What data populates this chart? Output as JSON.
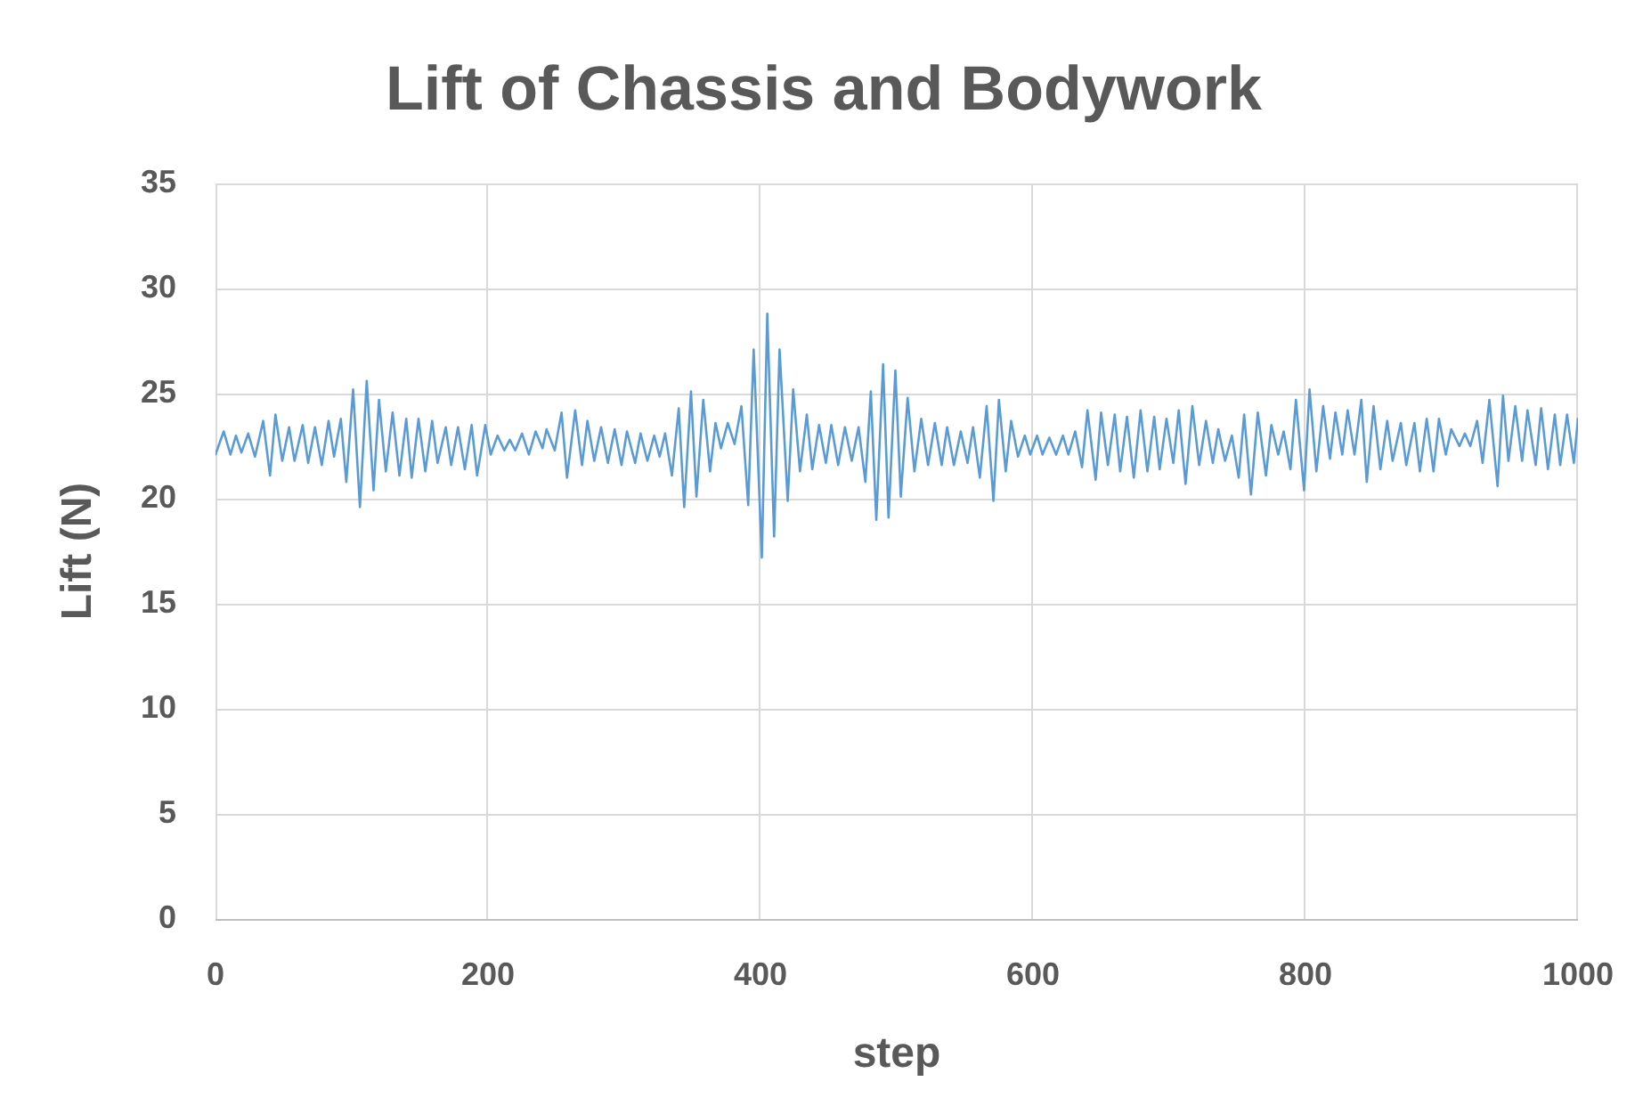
{
  "chart_data": {
    "type": "line",
    "title": "Lift of Chassis and Bodywork",
    "xlabel": "step",
    "ylabel": "Lift (N)",
    "x": [
      0,
      6,
      11,
      15,
      19,
      24,
      29,
      35,
      40,
      44,
      49,
      54,
      58,
      64,
      68,
      73,
      78,
      83,
      87,
      92,
      96,
      101,
      106,
      111,
      116,
      120,
      125,
      130,
      135,
      140,
      144,
      149,
      154,
      159,
      163,
      169,
      173,
      178,
      183,
      188,
      192,
      198,
      202,
      207,
      212,
      216,
      220,
      225,
      230,
      235,
      240,
      243,
      249,
      254,
      258,
      264,
      269,
      273,
      278,
      283,
      288,
      293,
      298,
      302,
      308,
      312,
      317,
      322,
      326,
      330,
      335,
      340,
      344,
      349,
      353,
      358,
      363,
      367,
      371,
      376,
      381,
      386,
      391,
      395,
      401,
      405,
      410,
      414,
      420,
      424,
      429,
      434,
      438,
      443,
      448,
      452,
      457,
      462,
      467,
      472,
      477,
      481,
      485,
      490,
      494,
      499,
      503,
      508,
      513,
      518,
      523,
      528,
      533,
      537,
      542,
      547,
      552,
      556,
      561,
      566,
      571,
      575,
      580,
      584,
      589,
      594,
      598,
      603,
      607,
      612,
      617,
      622,
      626,
      631,
      636,
      640,
      646,
      650,
      655,
      660,
      664,
      669,
      674,
      679,
      684,
      689,
      693,
      698,
      703,
      707,
      712,
      717,
      722,
      727,
      732,
      736,
      741,
      746,
      751,
      755,
      760,
      765,
      771,
      775,
      780,
      784,
      789,
      793,
      799,
      803,
      808,
      813,
      818,
      822,
      827,
      831,
      836,
      841,
      845,
      850,
      855,
      860,
      864,
      870,
      874,
      880,
      884,
      889,
      894,
      898,
      903,
      907,
      913,
      917,
      921,
      926,
      930,
      935,
      941,
      945,
      949,
      954,
      959,
      963,
      969,
      973,
      978,
      983,
      987,
      992,
      997,
      1000
    ],
    "series": [
      {
        "color": "#5b9bd5",
        "values": [
          22.1,
          23.2,
          22.1,
          23.0,
          22.2,
          23.1,
          22.0,
          23.7,
          21.1,
          24.0,
          21.8,
          23.4,
          21.8,
          23.5,
          21.7,
          23.4,
          21.6,
          23.7,
          22.0,
          23.8,
          20.8,
          25.2,
          19.6,
          25.6,
          20.4,
          24.7,
          21.3,
          24.1,
          21.1,
          23.8,
          21.0,
          23.8,
          21.3,
          23.7,
          21.7,
          23.4,
          21.6,
          23.4,
          21.4,
          23.5,
          21.1,
          23.5,
          22.1,
          23.0,
          22.3,
          22.8,
          22.3,
          23.1,
          22.1,
          23.2,
          22.4,
          23.3,
          22.3,
          24.1,
          21.0,
          24.2,
          21.6,
          23.7,
          21.8,
          23.4,
          21.7,
          23.3,
          21.6,
          23.2,
          21.7,
          23.1,
          21.8,
          23.0,
          22.0,
          23.1,
          21.1,
          24.3,
          19.6,
          25.1,
          20.1,
          24.7,
          21.3,
          23.6,
          22.4,
          23.6,
          22.6,
          24.4,
          19.7,
          27.1,
          17.2,
          28.8,
          18.2,
          27.1,
          19.9,
          25.2,
          21.3,
          24.0,
          21.4,
          23.5,
          21.7,
          23.5,
          21.6,
          23.4,
          21.8,
          23.4,
          20.8,
          25.1,
          19.0,
          26.4,
          19.1,
          26.1,
          20.1,
          24.8,
          21.3,
          23.8,
          21.6,
          23.6,
          21.6,
          23.4,
          21.6,
          23.2,
          21.7,
          23.4,
          21.0,
          24.4,
          19.9,
          24.7,
          21.3,
          23.7,
          22.0,
          23.0,
          22.1,
          23.0,
          22.1,
          22.9,
          22.1,
          23.0,
          22.1,
          23.2,
          21.5,
          24.2,
          20.9,
          24.1,
          21.6,
          24.0,
          21.3,
          23.9,
          21.0,
          24.2,
          21.3,
          23.9,
          21.4,
          23.8,
          21.7,
          24.2,
          20.7,
          24.4,
          21.6,
          23.7,
          21.7,
          23.3,
          21.8,
          23.0,
          21.0,
          24.0,
          20.2,
          24.1,
          21.1,
          23.5,
          22.1,
          23.2,
          21.4,
          24.7,
          20.4,
          25.2,
          21.3,
          24.4,
          21.9,
          24.1,
          22.1,
          24.2,
          22.1,
          24.7,
          20.8,
          24.4,
          21.4,
          23.7,
          21.8,
          23.6,
          21.6,
          23.6,
          21.3,
          23.8,
          21.3,
          23.8,
          22.1,
          23.3,
          22.5,
          23.1,
          22.5,
          23.7,
          21.7,
          24.7,
          20.6,
          24.9,
          21.8,
          24.4,
          21.8,
          24.2,
          21.6,
          24.3,
          21.4,
          24.0,
          21.6,
          24.0,
          21.7,
          23.8
        ]
      }
    ],
    "xlim": [
      0,
      1000
    ],
    "xticks": [
      0,
      200,
      400,
      600,
      800,
      1000
    ],
    "ylim": [
      0,
      35
    ],
    "yticks": [
      0,
      5,
      10,
      15,
      20,
      25,
      30,
      35
    ],
    "grid": true
  }
}
